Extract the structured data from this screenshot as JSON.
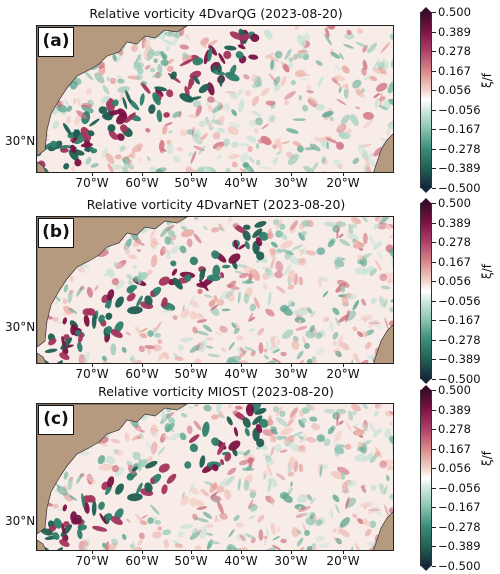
{
  "colors": {
    "land": "#b59a80",
    "ocean_bg": "#f7ece8",
    "positive": "#7a1145",
    "negative": "#1f5e52"
  },
  "colorbar": {
    "unit": "ξ/f",
    "ticks": [
      "0.500",
      "0.389",
      "0.278",
      "0.167",
      "0.056",
      "−0.056",
      "−0.167",
      "−0.278",
      "−0.389",
      "−0.500"
    ]
  },
  "axes": {
    "lat_label": "30°N",
    "lon_labels": [
      "70°W",
      "60°W",
      "50°W",
      "40°W",
      "30°W",
      "20°W"
    ]
  },
  "panels": [
    {
      "id": "a",
      "label": "(a)",
      "title": "Relative vorticity 4DvarQG (2023-08-20)"
    },
    {
      "id": "b",
      "label": "(b)",
      "title": "Relative vorticity 4DvarNET (2023-08-20)"
    },
    {
      "id": "c",
      "label": "(c)",
      "title": "Relative vorticity MIOST (2023-08-20)"
    }
  ]
}
